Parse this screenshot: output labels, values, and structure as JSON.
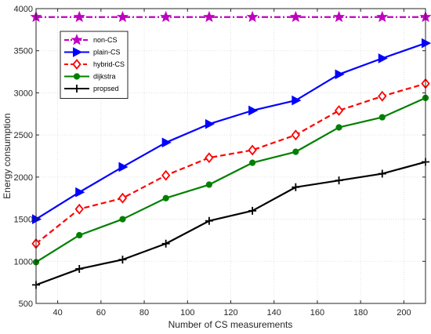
{
  "chart_data": {
    "type": "line",
    "xlabel": "Number of CS measurements",
    "ylabel": "Energy consumption",
    "xlim": [
      30,
      210
    ],
    "ylim": [
      500,
      4000
    ],
    "x_ticks": [
      40,
      60,
      80,
      100,
      120,
      140,
      160,
      180,
      200
    ],
    "y_ticks": [
      500,
      1000,
      1500,
      2000,
      2500,
      3000,
      3500,
      4000
    ],
    "grid": true,
    "legend_position": "top-left",
    "x": [
      30,
      50,
      70,
      90,
      110,
      130,
      150,
      170,
      190,
      210
    ],
    "series": [
      {
        "name": "non-CS",
        "color": "#c000c0",
        "dash": "dashdot",
        "marker": "star",
        "values": [
          3900,
          3900,
          3900,
          3900,
          3900,
          3900,
          3900,
          3900,
          3900,
          3900
        ]
      },
      {
        "name": "plain-CS",
        "color": "#0000ff",
        "dash": "solid",
        "marker": "triangle-right",
        "values": [
          1500,
          1820,
          2120,
          2410,
          2630,
          2790,
          2910,
          3220,
          3410,
          3590
        ]
      },
      {
        "name": "hybrid-CS",
        "color": "#ff0000",
        "dash": "dashed",
        "marker": "diamond",
        "values": [
          1210,
          1620,
          1750,
          2020,
          2230,
          2320,
          2500,
          2790,
          2960,
          3110
        ]
      },
      {
        "name": "dijkstra",
        "color": "#008000",
        "dash": "solid",
        "marker": "circle",
        "values": [
          990,
          1310,
          1500,
          1750,
          1910,
          2170,
          2300,
          2590,
          2710,
          2940
        ]
      },
      {
        "name": "propsed",
        "color": "#000000",
        "dash": "solid",
        "marker": "plus",
        "values": [
          720,
          910,
          1020,
          1210,
          1480,
          1600,
          1880,
          1960,
          2040,
          2180
        ]
      }
    ]
  }
}
